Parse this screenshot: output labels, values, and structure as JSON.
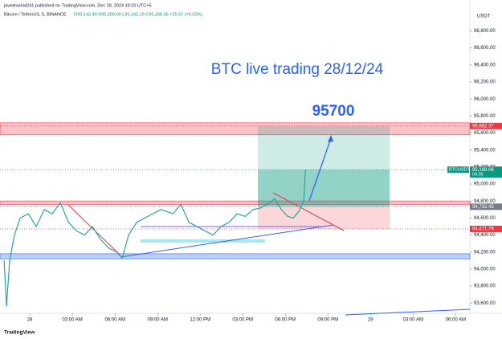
{
  "header": {
    "publisher": "javedrashid241 published on TradingView.com, Dec 28, 2024 19:20 UTC+5",
    "symbol": "Bitcoin / TetherUS, 5, BINANCE",
    "ohlc": "O95,142.40 H95,200.00 L95,142.19 C95,168.06 +25.67 (+0.03%)"
  },
  "footer": {
    "logo": "TradingView"
  },
  "chart_data": {
    "type": "line",
    "title": "BTC live trading 28/12/24",
    "annotation": "95700",
    "unit": "USDT",
    "color": "#26a69a",
    "x": [
      -1.81,
      -1.64,
      -1.42,
      -1.08,
      -0.68,
      -0.11,
      0.45,
      1.02,
      1.58,
      2.15,
      2.72,
      3.28,
      3.85,
      4.42,
      4.98,
      5.55,
      6.11,
      6.51,
      6.96,
      7.53,
      8.09,
      8.66,
      9.23,
      10.08,
      10.64,
      11.21,
      11.77,
      12.34,
      12.91,
      13.47,
      14.04,
      14.6,
      15.17,
      15.74,
      16.3,
      16.87,
      17.26,
      17.72,
      18.17,
      18.57,
      18.96,
      19.3,
      19.42
    ],
    "values": [
      94100,
      93560,
      94100,
      94400,
      94600,
      94650,
      94500,
      94700,
      94650,
      94780,
      94550,
      94450,
      94400,
      94500,
      94350,
      94250,
      94200,
      94130,
      94400,
      94550,
      94600,
      94650,
      94700,
      94650,
      94760,
      94550,
      94500,
      94450,
      94400,
      94500,
      94550,
      94650,
      94620,
      94700,
      94720,
      94780,
      94830,
      94700,
      94620,
      94600,
      94680,
      94800,
      95168.06
    ],
    "xlim": [
      -2.1,
      31.0
    ],
    "xticks": [
      {
        "value": 0,
        "label": "28"
      },
      {
        "value": 3,
        "label": "03:00 AM"
      },
      {
        "value": 6,
        "label": "06:00 AM"
      },
      {
        "value": 9,
        "label": "09:00 AM"
      },
      {
        "value": 12,
        "label": "12:00 PM"
      },
      {
        "value": 15,
        "label": "03:00 PM"
      },
      {
        "value": 18,
        "label": "06:00 PM"
      },
      {
        "value": 21,
        "label": "09:00 PM"
      },
      {
        "value": 24,
        "label": "29"
      },
      {
        "value": 27,
        "label": "03:00 AM"
      },
      {
        "value": 30,
        "label": "06:00 AM"
      }
    ],
    "ylim": [
      93480,
      96880
    ],
    "yticks": [
      {
        "value": 93600,
        "label": "93,600.00"
      },
      {
        "value": 93800,
        "label": "93,800.00"
      },
      {
        "value": 94000,
        "label": "94,000.00"
      },
      {
        "value": 94200,
        "label": "94,200.00"
      },
      {
        "value": 94400,
        "label": "94,400.00"
      },
      {
        "value": 94600,
        "label": "94,600.00"
      },
      {
        "value": 94800,
        "label": "94,800.00"
      },
      {
        "value": 95000,
        "label": "95,000.00"
      },
      {
        "value": 95200,
        "label": "95,200.00"
      },
      {
        "value": 95400,
        "label": "95,400.00"
      },
      {
        "value": 95600,
        "label": "95,600.00"
      },
      {
        "value": 95800,
        "label": "95,800.00"
      },
      {
        "value": 96000,
        "label": "96,000.00"
      },
      {
        "value": 96200,
        "label": "96,200.00"
      },
      {
        "value": 96400,
        "label": "96,400.00"
      },
      {
        "value": 96600,
        "label": "96,600.00"
      },
      {
        "value": 96800,
        "label": "96,800.00"
      }
    ],
    "zones": [
      {
        "from": 95580,
        "to": 95720,
        "color": "#f23645"
      },
      {
        "from": 94760,
        "to": 94800,
        "color": "#f23645"
      },
      {
        "from": 94120,
        "to": 94180,
        "color": "#2962ff"
      }
    ],
    "price_tags": [
      {
        "value": 95682.37,
        "label": "95,682.37",
        "color": "#f23645"
      },
      {
        "name": "BTCUSDT",
        "value": 95168.06,
        "label": "95,168.06",
        "countdown": "04:05",
        "color": "#089981"
      },
      {
        "value": 94732.45,
        "label": "94,732.45",
        "color": "#787b86"
      },
      {
        "value": 94471.79,
        "label": "94,471.79",
        "color": "#f23645"
      }
    ]
  }
}
